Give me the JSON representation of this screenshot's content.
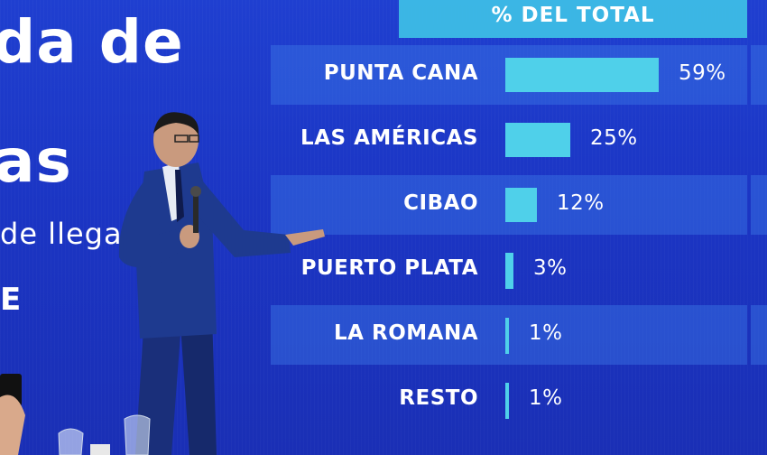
{
  "left_slide_text": {
    "line1": "da de",
    "line2": "as",
    "line3": "de llega",
    "line4": "E"
  },
  "table": {
    "header": "% DEL TOTAL",
    "rows": [
      {
        "label": "PUNTA CANA",
        "value": 59,
        "value_label": "59%"
      },
      {
        "label": "LAS AMÉRICAS",
        "value": 25,
        "value_label": "25%"
      },
      {
        "label": "CIBAO",
        "value": 12,
        "value_label": "12%"
      },
      {
        "label": "PUERTO PLATA",
        "value": 3,
        "value_label": "3%"
      },
      {
        "label": "LA ROMANA",
        "value": 1,
        "value_label": "1%"
      },
      {
        "label": "RESTO",
        "value": 1,
        "value_label": "1%"
      }
    ]
  },
  "colors": {
    "screen_blue": "#1f3fd0",
    "header_cyan": "#3ec0e6",
    "bar_cyan": "#4fd0ea",
    "suit_navy": "#1a2f7a"
  },
  "scene": {
    "presenter": "man in navy suit holding microphone, pointing at screen",
    "foreground": "smartphone in hand and wine glasses"
  }
}
